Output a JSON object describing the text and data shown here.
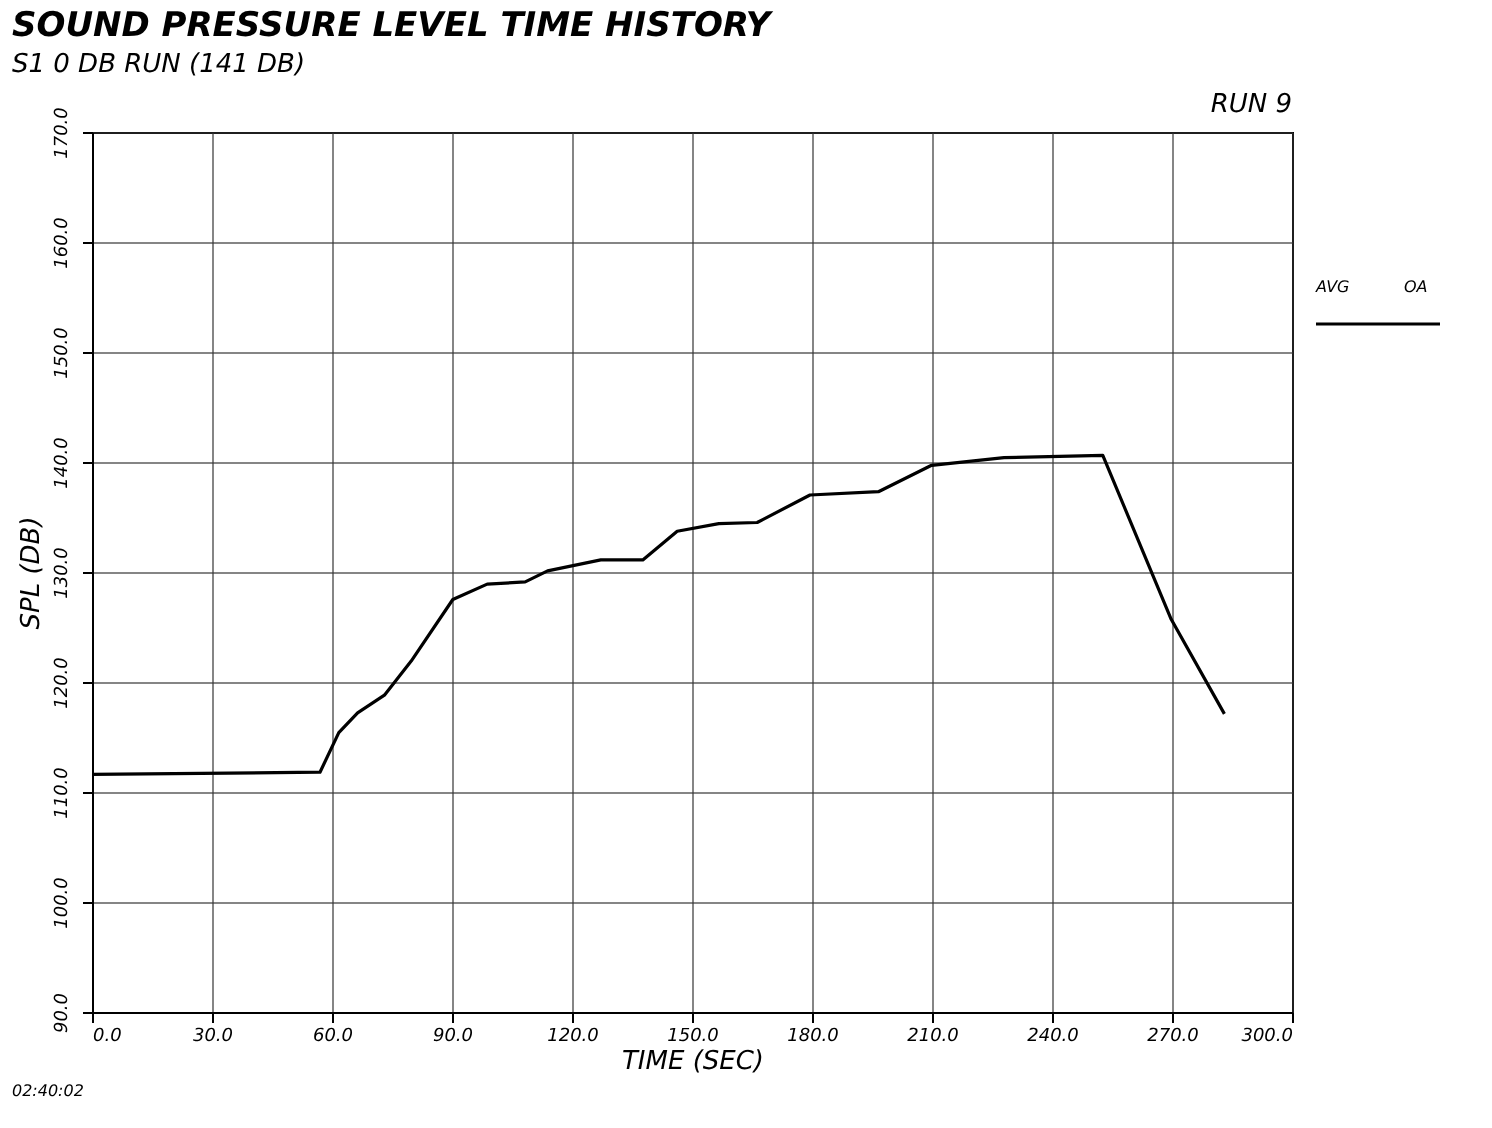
{
  "chart_data": {
    "type": "line",
    "title": "SOUND PRESSURE LEVEL TIME HISTORY",
    "subtitle": "S1 0 DB RUN (141 DB)",
    "xlabel": "TIME (SEC)",
    "ylabel": "SPL (DB)",
    "annotations": [
      "RUN 9",
      "02:40:02",
      "AVG",
      "OA"
    ],
    "x": [
      0,
      57,
      61.7,
      66.4,
      73.1,
      79.8,
      90.2,
      98.8,
      108.3,
      113.9,
      127.2,
      137.7,
      146.3,
      156.7,
      166.3,
      179.5,
      196.6,
      209.9,
      228,
      252.7,
      269.8,
      283.1
    ],
    "series": [
      {
        "color": "#000000",
        "values": [
          111.6,
          111.8,
          115.4,
          117.2,
          118.8,
          121.9,
          127.5,
          128.9,
          129.1,
          130.1,
          131.1,
          131.1,
          133.7,
          134.4,
          134.5,
          137,
          137.3,
          139.7,
          140.4,
          140.6,
          125.7,
          117.1
        ]
      }
    ],
    "xlim": [
      0,
      300
    ],
    "ylim": [
      90,
      170
    ],
    "xticks": [
      {
        "value": 0,
        "label": "0.0"
      },
      {
        "value": 30,
        "label": "30.0"
      },
      {
        "value": 60,
        "label": "60.0"
      },
      {
        "value": 90,
        "label": "90.0"
      },
      {
        "value": 120,
        "label": "120.0"
      },
      {
        "value": 150,
        "label": "150.0"
      },
      {
        "value": 180,
        "label": "180.0"
      },
      {
        "value": 210,
        "label": "210.0"
      },
      {
        "value": 240,
        "label": "240.0"
      },
      {
        "value": 270,
        "label": "270.0"
      },
      {
        "value": 300,
        "label": "300.0"
      }
    ],
    "yticks": [
      {
        "value": 90,
        "label": "90.0"
      },
      {
        "value": 100,
        "label": "100.0"
      },
      {
        "value": 110,
        "label": "110.0"
      },
      {
        "value": 120,
        "label": "120.0"
      },
      {
        "value": 130,
        "label": "130.0"
      },
      {
        "value": 140,
        "label": "140.0"
      },
      {
        "value": 150,
        "label": "150.0"
      },
      {
        "value": 160,
        "label": "160.0"
      },
      {
        "value": 170,
        "label": "170.0"
      }
    ],
    "grid": true,
    "marker": "none",
    "line_style": "solid"
  }
}
